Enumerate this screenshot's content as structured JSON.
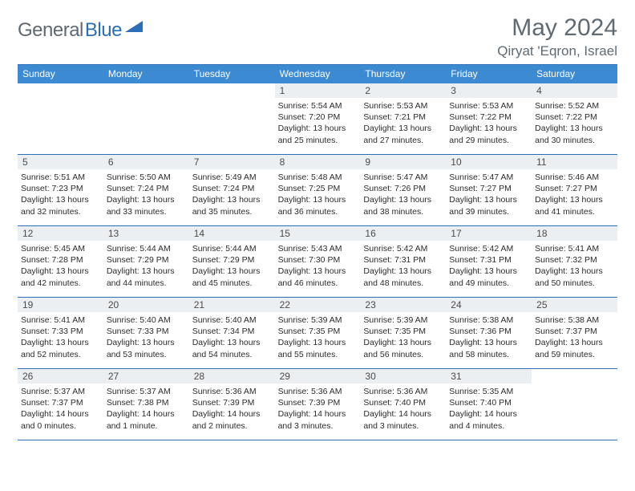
{
  "brand": {
    "part1": "General",
    "part2": "Blue",
    "mark_color": "#2a6fb7"
  },
  "title": "May 2024",
  "location": "Qiryat 'Eqron, Israel",
  "colors": {
    "header_bg": "#3c8bd2",
    "border": "#2a6fb7",
    "daynum_bg": "#eceff2",
    "text_muted": "#5f6a73"
  },
  "weekdays": [
    "Sunday",
    "Monday",
    "Tuesday",
    "Wednesday",
    "Thursday",
    "Friday",
    "Saturday"
  ],
  "weeks": [
    [
      null,
      null,
      null,
      {
        "n": "1",
        "sr": "5:54 AM",
        "ss": "7:20 PM",
        "dl": "13 hours and 25 minutes."
      },
      {
        "n": "2",
        "sr": "5:53 AM",
        "ss": "7:21 PM",
        "dl": "13 hours and 27 minutes."
      },
      {
        "n": "3",
        "sr": "5:53 AM",
        "ss": "7:22 PM",
        "dl": "13 hours and 29 minutes."
      },
      {
        "n": "4",
        "sr": "5:52 AM",
        "ss": "7:22 PM",
        "dl": "13 hours and 30 minutes."
      }
    ],
    [
      {
        "n": "5",
        "sr": "5:51 AM",
        "ss": "7:23 PM",
        "dl": "13 hours and 32 minutes."
      },
      {
        "n": "6",
        "sr": "5:50 AM",
        "ss": "7:24 PM",
        "dl": "13 hours and 33 minutes."
      },
      {
        "n": "7",
        "sr": "5:49 AM",
        "ss": "7:24 PM",
        "dl": "13 hours and 35 minutes."
      },
      {
        "n": "8",
        "sr": "5:48 AM",
        "ss": "7:25 PM",
        "dl": "13 hours and 36 minutes."
      },
      {
        "n": "9",
        "sr": "5:47 AM",
        "ss": "7:26 PM",
        "dl": "13 hours and 38 minutes."
      },
      {
        "n": "10",
        "sr": "5:47 AM",
        "ss": "7:27 PM",
        "dl": "13 hours and 39 minutes."
      },
      {
        "n": "11",
        "sr": "5:46 AM",
        "ss": "7:27 PM",
        "dl": "13 hours and 41 minutes."
      }
    ],
    [
      {
        "n": "12",
        "sr": "5:45 AM",
        "ss": "7:28 PM",
        "dl": "13 hours and 42 minutes."
      },
      {
        "n": "13",
        "sr": "5:44 AM",
        "ss": "7:29 PM",
        "dl": "13 hours and 44 minutes."
      },
      {
        "n": "14",
        "sr": "5:44 AM",
        "ss": "7:29 PM",
        "dl": "13 hours and 45 minutes."
      },
      {
        "n": "15",
        "sr": "5:43 AM",
        "ss": "7:30 PM",
        "dl": "13 hours and 46 minutes."
      },
      {
        "n": "16",
        "sr": "5:42 AM",
        "ss": "7:31 PM",
        "dl": "13 hours and 48 minutes."
      },
      {
        "n": "17",
        "sr": "5:42 AM",
        "ss": "7:31 PM",
        "dl": "13 hours and 49 minutes."
      },
      {
        "n": "18",
        "sr": "5:41 AM",
        "ss": "7:32 PM",
        "dl": "13 hours and 50 minutes."
      }
    ],
    [
      {
        "n": "19",
        "sr": "5:41 AM",
        "ss": "7:33 PM",
        "dl": "13 hours and 52 minutes."
      },
      {
        "n": "20",
        "sr": "5:40 AM",
        "ss": "7:33 PM",
        "dl": "13 hours and 53 minutes."
      },
      {
        "n": "21",
        "sr": "5:40 AM",
        "ss": "7:34 PM",
        "dl": "13 hours and 54 minutes."
      },
      {
        "n": "22",
        "sr": "5:39 AM",
        "ss": "7:35 PM",
        "dl": "13 hours and 55 minutes."
      },
      {
        "n": "23",
        "sr": "5:39 AM",
        "ss": "7:35 PM",
        "dl": "13 hours and 56 minutes."
      },
      {
        "n": "24",
        "sr": "5:38 AM",
        "ss": "7:36 PM",
        "dl": "13 hours and 58 minutes."
      },
      {
        "n": "25",
        "sr": "5:38 AM",
        "ss": "7:37 PM",
        "dl": "13 hours and 59 minutes."
      }
    ],
    [
      {
        "n": "26",
        "sr": "5:37 AM",
        "ss": "7:37 PM",
        "dl": "14 hours and 0 minutes."
      },
      {
        "n": "27",
        "sr": "5:37 AM",
        "ss": "7:38 PM",
        "dl": "14 hours and 1 minute."
      },
      {
        "n": "28",
        "sr": "5:36 AM",
        "ss": "7:39 PM",
        "dl": "14 hours and 2 minutes."
      },
      {
        "n": "29",
        "sr": "5:36 AM",
        "ss": "7:39 PM",
        "dl": "14 hours and 3 minutes."
      },
      {
        "n": "30",
        "sr": "5:36 AM",
        "ss": "7:40 PM",
        "dl": "14 hours and 3 minutes."
      },
      {
        "n": "31",
        "sr": "5:35 AM",
        "ss": "7:40 PM",
        "dl": "14 hours and 4 minutes."
      },
      null
    ]
  ],
  "labels": {
    "sunrise": "Sunrise: ",
    "sunset": "Sunset: ",
    "daylight": "Daylight: "
  }
}
